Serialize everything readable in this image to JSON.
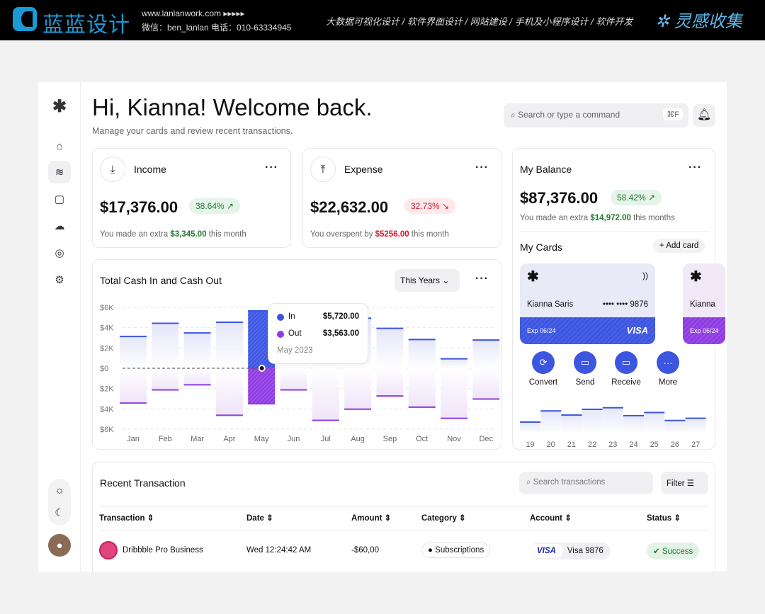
{
  "banner": {
    "logo": "蓝蓝设计",
    "url": "www.lanlanwork.com ▸▸▸▸▸",
    "contact": "微信：ben_lanlan   电话：010-63334945",
    "services": "大数据可视化设计 / 软件界面设计 / 网站建设 / 手机及小程序设计 / 软件开发",
    "brand": "灵感收集"
  },
  "header": {
    "title": "Hi, Kianna! Welcome back.",
    "subtitle": "Manage your cards and review recent transactions.",
    "search_placeholder": "Search or type a command",
    "shortcut": "⌘F"
  },
  "income": {
    "label": "Income",
    "amount": "$17,376.00",
    "change": "38.64% ↗",
    "note_pre": "You made an extra ",
    "note_value": "$3,345.00",
    "note_post": " this month"
  },
  "expense": {
    "label": "Expense",
    "amount": "$22,632.00",
    "change": "32.73% ↘",
    "note_pre": "You overspent by ",
    "note_value": "$5256.00",
    "note_post": " this month"
  },
  "balance": {
    "label": "My Balance",
    "amount": "$87,376.00",
    "change": "58.42% ↗",
    "note_pre": "You made an extra ",
    "note_value": "$14,972.00",
    "note_post": " this months",
    "cards_title": "My Cards",
    "add_card": "+ Add card",
    "card": {
      "holder": "Kianna Saris",
      "number": "•••• •••• 9876",
      "expiry": "Exp 06/24",
      "network": "VISA"
    },
    "card2": {
      "holder": "Kianna",
      "expiry": "Exp 06/24"
    },
    "actions": [
      "Convert",
      "Send",
      "Receive",
      "More"
    ],
    "mini_chart": {
      "days": [
        "19",
        "20",
        "21",
        "22",
        "23",
        "24",
        "25",
        "26",
        "27"
      ],
      "levels": [
        0.4,
        0.75,
        0.62,
        0.8,
        0.85,
        0.6,
        0.7,
        0.45,
        0.52
      ]
    }
  },
  "cashflow": {
    "title": "Total Cash In and Cash Out",
    "period": "This Years ⌄",
    "tooltip": {
      "in_label": "In",
      "in_value": "$5,720.00",
      "out_label": "Out",
      "out_value": "$3,563.00",
      "date": "May 2023"
    }
  },
  "chart_data": {
    "type": "bar",
    "categories": [
      "Jan",
      "Feb",
      "Mar",
      "Apr",
      "May",
      "Jun",
      "Jul",
      "Aug",
      "Sep",
      "Oct",
      "Nov",
      "Dec"
    ],
    "series": [
      {
        "name": "In",
        "values": [
          3.2,
          4.5,
          3.55,
          4.6,
          5.72,
          5.0,
          4.9,
          5.0,
          4.0,
          2.9,
          1.0,
          2.85
        ]
      },
      {
        "name": "Out",
        "values": [
          -3.5,
          -2.2,
          -1.7,
          -4.7,
          -3.563,
          -2.2,
          -5.2,
          -4.1,
          -2.8,
          -3.9,
          -5.0,
          -3.1
        ]
      }
    ],
    "yticks": [
      "$6K",
      "$4K",
      "$2K",
      "$0",
      "$2K",
      "$4K",
      "$6K"
    ],
    "ylim": [
      -6,
      6
    ],
    "unit": "thousands USD",
    "grid": true,
    "highlight": "May",
    "colors": {
      "in": "#3d56e0",
      "out": "#8e3ce0"
    }
  },
  "transactions": {
    "title": "Recent Transaction",
    "search_placeholder": "Search transactions",
    "filter": "Filter",
    "columns": [
      "Transaction",
      "Date",
      "Amount",
      "Category",
      "Account",
      "Status"
    ],
    "rows": [
      {
        "name": "Dribbble Pro Business",
        "date": "Wed 12:24:42 AM",
        "amount": "-$60,00",
        "category": "Subscriptions",
        "account_brand": "VISA",
        "account": "Visa 9876",
        "status": "Success"
      }
    ]
  }
}
